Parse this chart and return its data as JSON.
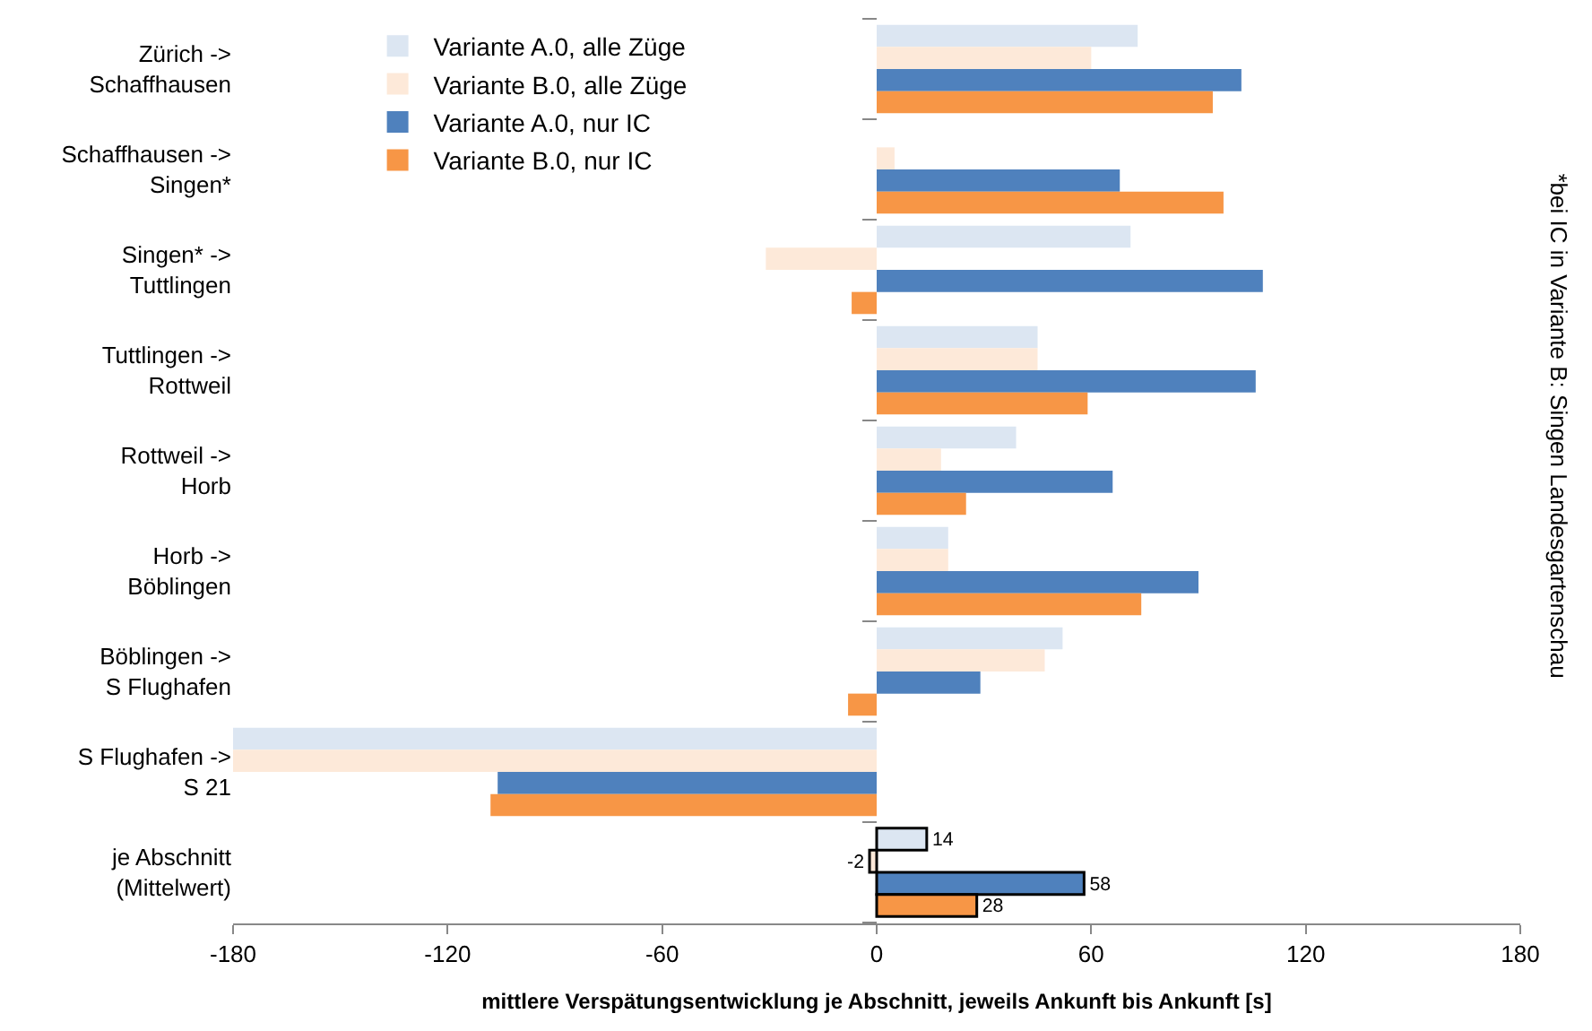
{
  "chart_data": {
    "type": "bar",
    "orientation": "horizontal",
    "categories": [
      "Zürich ->\nSchaffhausen",
      "Schaffhausen ->\nSingen*",
      "Singen* ->\nTuttlingen",
      "Tuttlingen ->\nRottweil",
      "Rottweil ->\nHorb",
      "Horb ->\nBöblingen",
      "Böblingen ->\nS Flughafen",
      "S Flughafen ->\nS 21",
      "je Abschnitt\n(Mittelwert)"
    ],
    "series": [
      {
        "name": "Variante A.0, alle Züge",
        "color": "#dce6f2",
        "values": [
          73,
          0,
          71,
          45,
          39,
          20,
          52,
          -180,
          14
        ],
        "value_labels": [
          null,
          null,
          null,
          null,
          null,
          null,
          null,
          null,
          "14"
        ]
      },
      {
        "name": "Variante B.0, alle Züge",
        "color": "#fde9d9",
        "values": [
          60,
          5,
          -31,
          45,
          18,
          20,
          47,
          -180,
          -2
        ],
        "value_labels": [
          null,
          null,
          null,
          null,
          null,
          null,
          null,
          null,
          "-2"
        ]
      },
      {
        "name": "Variante A.0, nur IC",
        "color": "#4f81bd",
        "values": [
          102,
          68,
          108,
          106,
          66,
          90,
          29,
          -106,
          58
        ],
        "value_labels": [
          null,
          null,
          null,
          null,
          null,
          null,
          null,
          null,
          "58"
        ]
      },
      {
        "name": "Variante B.0, nur IC",
        "color": "#f79646",
        "values": [
          94,
          97,
          -7,
          59,
          25,
          74,
          -8,
          -108,
          28
        ],
        "value_labels": [
          null,
          null,
          null,
          null,
          null,
          null,
          null,
          null,
          "28"
        ]
      }
    ],
    "xlim": [
      -180,
      180
    ],
    "xticks": [
      -180,
      -120,
      -60,
      0,
      60,
      120,
      180
    ],
    "xlabel": "mittlere Verspätungsentwicklung je Abschnitt, jeweils Ankunft bis Ankunft [s]",
    "annotations": [
      "*bei IC in Variante B: Singen Landesgartenschau"
    ],
    "legend": "top left"
  }
}
